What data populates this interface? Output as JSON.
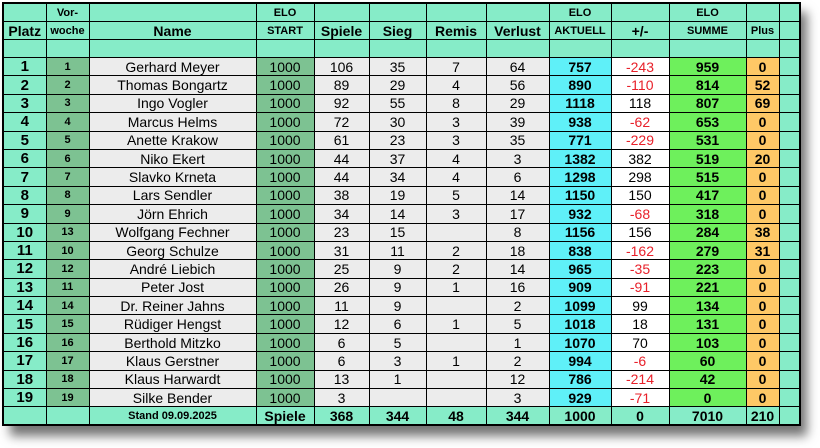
{
  "header": {
    "platz": "Platz",
    "vorwoche_1": "Vor-",
    "vorwoche_2": "woche",
    "name": "Name",
    "elo_start_1": "ELO",
    "elo_start_2": "START",
    "spiele": "Spiele",
    "sieg": "Sieg",
    "remis": "Remis",
    "verlust": "Verlust",
    "elo_aktuell_1": "ELO",
    "elo_aktuell_2": "AKTUELL",
    "diff": "+/-",
    "elo_summe_1": "ELO",
    "elo_summe_2": "SUMME",
    "plus": "Plus"
  },
  "colors": {
    "negative": "#e8202a",
    "aktuell": "#5ff0f8",
    "summe": "#6ef05c",
    "plus": "#fec866",
    "header": "#86ecc8"
  },
  "rows": [
    {
      "platz": "1",
      "vorwoche": "1",
      "name": "Gerhard Meyer",
      "elo_start": "1000",
      "spiele": "106",
      "sieg": "35",
      "remis": "7",
      "verlust": "64",
      "aktuell": "757",
      "diff": "-243",
      "summe": "959",
      "plus": "0"
    },
    {
      "platz": "2",
      "vorwoche": "2",
      "name": "Thomas Bongartz",
      "elo_start": "1000",
      "spiele": "89",
      "sieg": "29",
      "remis": "4",
      "verlust": "56",
      "aktuell": "890",
      "diff": "-110",
      "summe": "814",
      "plus": "52"
    },
    {
      "platz": "3",
      "vorwoche": "3",
      "name": "Ingo Vogler",
      "elo_start": "1000",
      "spiele": "92",
      "sieg": "55",
      "remis": "8",
      "verlust": "29",
      "aktuell": "1118",
      "diff": "118",
      "summe": "807",
      "plus": "69"
    },
    {
      "platz": "4",
      "vorwoche": "4",
      "name": "Marcus Helms",
      "elo_start": "1000",
      "spiele": "72",
      "sieg": "30",
      "remis": "3",
      "verlust": "39",
      "aktuell": "938",
      "diff": "-62",
      "summe": "653",
      "plus": "0"
    },
    {
      "platz": "5",
      "vorwoche": "5",
      "name": "Anette Krakow",
      "elo_start": "1000",
      "spiele": "61",
      "sieg": "23",
      "remis": "3",
      "verlust": "35",
      "aktuell": "771",
      "diff": "-229",
      "summe": "531",
      "plus": "0"
    },
    {
      "platz": "6",
      "vorwoche": "6",
      "name": "Niko Ekert",
      "elo_start": "1000",
      "spiele": "44",
      "sieg": "37",
      "remis": "4",
      "verlust": "3",
      "aktuell": "1382",
      "diff": "382",
      "summe": "519",
      "plus": "20"
    },
    {
      "platz": "7",
      "vorwoche": "7",
      "name": "Slavko Krneta",
      "elo_start": "1000",
      "spiele": "44",
      "sieg": "34",
      "remis": "4",
      "verlust": "6",
      "aktuell": "1298",
      "diff": "298",
      "summe": "515",
      "plus": "0"
    },
    {
      "platz": "8",
      "vorwoche": "8",
      "name": "Lars Sendler",
      "elo_start": "1000",
      "spiele": "38",
      "sieg": "19",
      "remis": "5",
      "verlust": "14",
      "aktuell": "1150",
      "diff": "150",
      "summe": "417",
      "plus": "0"
    },
    {
      "platz": "9",
      "vorwoche": "9",
      "name": "Jörn Ehrich",
      "elo_start": "1000",
      "spiele": "34",
      "sieg": "14",
      "remis": "3",
      "verlust": "17",
      "aktuell": "932",
      "diff": "-68",
      "summe": "318",
      "plus": "0"
    },
    {
      "platz": "10",
      "vorwoche": "13",
      "name": "Wolfgang Fechner",
      "elo_start": "1000",
      "spiele": "23",
      "sieg": "15",
      "remis": "",
      "verlust": "8",
      "aktuell": "1156",
      "diff": "156",
      "summe": "284",
      "plus": "38"
    },
    {
      "platz": "11",
      "vorwoche": "10",
      "name": "Georg Schulze",
      "elo_start": "1000",
      "spiele": "31",
      "sieg": "11",
      "remis": "2",
      "verlust": "18",
      "aktuell": "838",
      "diff": "-162",
      "summe": "279",
      "plus": "31"
    },
    {
      "platz": "12",
      "vorwoche": "12",
      "name": "André Liebich",
      "elo_start": "1000",
      "spiele": "25",
      "sieg": "9",
      "remis": "2",
      "verlust": "14",
      "aktuell": "965",
      "diff": "-35",
      "summe": "223",
      "plus": "0"
    },
    {
      "platz": "13",
      "vorwoche": "11",
      "name": "Peter Jost",
      "elo_start": "1000",
      "spiele": "26",
      "sieg": "9",
      "remis": "1",
      "verlust": "16",
      "aktuell": "909",
      "diff": "-91",
      "summe": "221",
      "plus": "0"
    },
    {
      "platz": "14",
      "vorwoche": "14",
      "name": "Dr. Reiner Jahns",
      "elo_start": "1000",
      "spiele": "11",
      "sieg": "9",
      "remis": "",
      "verlust": "2",
      "aktuell": "1099",
      "diff": "99",
      "summe": "134",
      "plus": "0"
    },
    {
      "platz": "15",
      "vorwoche": "15",
      "name": "Rüdiger Hengst",
      "elo_start": "1000",
      "spiele": "12",
      "sieg": "6",
      "remis": "1",
      "verlust": "5",
      "aktuell": "1018",
      "diff": "18",
      "summe": "131",
      "plus": "0"
    },
    {
      "platz": "16",
      "vorwoche": "16",
      "name": "Berthold Mitzko",
      "elo_start": "1000",
      "spiele": "6",
      "sieg": "5",
      "remis": "",
      "verlust": "1",
      "aktuell": "1070",
      "diff": "70",
      "summe": "103",
      "plus": "0"
    },
    {
      "platz": "17",
      "vorwoche": "17",
      "name": "Klaus Gerstner",
      "elo_start": "1000",
      "spiele": "6",
      "sieg": "3",
      "remis": "1",
      "verlust": "2",
      "aktuell": "994",
      "diff": "-6",
      "summe": "60",
      "plus": "0"
    },
    {
      "platz": "18",
      "vorwoche": "18",
      "name": "Klaus Harwardt",
      "elo_start": "1000",
      "spiele": "13",
      "sieg": "1",
      "remis": "",
      "verlust": "12",
      "aktuell": "786",
      "diff": "-214",
      "summe": "42",
      "plus": "0"
    },
    {
      "platz": "19",
      "vorwoche": "19",
      "name": "Silke Bender",
      "elo_start": "1000",
      "spiele": "3",
      "sieg": "",
      "remis": "",
      "verlust": "3",
      "aktuell": "929",
      "diff": "-71",
      "summe": "0",
      "plus": "0"
    }
  ],
  "footer": {
    "stand": "Stand 09.09.2025",
    "spiele_label": "Spiele",
    "spiele": "368",
    "sieg": "344",
    "remis": "48",
    "verlust": "344",
    "aktuell": "1000",
    "diff": "0",
    "summe": "7010",
    "plus": "210"
  }
}
